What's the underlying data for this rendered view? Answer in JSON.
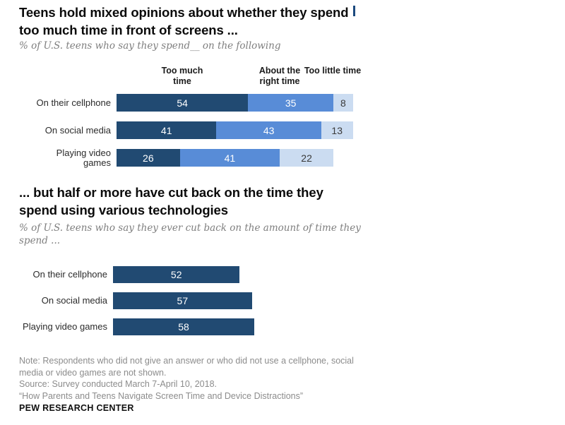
{
  "colors": {
    "dark_blue": "#214A72",
    "medium_blue": "#588CD7",
    "light_blue": "#CBDCF1",
    "subtitle_gray": "#7f7f7f",
    "note_gray": "#8c8c8c"
  },
  "section1": {
    "title_line1": "Teens hold mixed opinions about whether they spend",
    "title_line2": "too much time in front of screens ...",
    "subtitle": "% of U.S. teens who say they spend__ on the following"
  },
  "section2": {
    "title_line1": "... but half or more have cut back on the time they",
    "title_line2": "spend using various technologies",
    "subtitle_line1": "% of U.S. teens who say they ever cut back on the amount of time they",
    "subtitle_line2": "spend ..."
  },
  "footer": {
    "note_lines": [
      "Note: Respondents who did not give an answer or who did not use a cellphone, social",
      "media or video games are not shown.",
      "Source: Survey conducted March 7-April 10, 2018.",
      "“How Parents and Teens Navigate Screen Time and Device Distractions”"
    ],
    "brand": "PEW RESEARCH CENTER"
  },
  "chart_data": [
    {
      "type": "bar",
      "orientation": "horizontal",
      "stacked": true,
      "title": "Teens hold mixed opinions about whether they spend too much time in front of screens ...",
      "subtitle": "% of U.S. teens who say they spend__ on the following",
      "categories": [
        "On their cellphone",
        "On social media",
        "Playing video games"
      ],
      "series": [
        {
          "name": "Too much time",
          "values": [
            54,
            41,
            26
          ],
          "color": "#214A72",
          "value_label_color": "#ffffff"
        },
        {
          "name": "About the right time",
          "values": [
            35,
            43,
            41
          ],
          "color": "#588CD7",
          "value_label_color": "#ffffff"
        },
        {
          "name": "Too little time",
          "values": [
            8,
            13,
            22
          ],
          "color": "#CBDCF1",
          "value_label_color": "#3a3a3a"
        }
      ],
      "xlim": [
        0,
        100
      ],
      "axis": "none",
      "grid": false,
      "legend_position": "column-headers-above-bars"
    },
    {
      "type": "bar",
      "orientation": "horizontal",
      "stacked": false,
      "title": "... but half or more have cut back on the time they spend using various technologies",
      "subtitle": "% of U.S. teens who say they ever cut back on the amount of time they spend ...",
      "categories": [
        "On their cellphone",
        "On social media",
        "Playing video games"
      ],
      "values": [
        52,
        57,
        58
      ],
      "bar_color": "#214A72",
      "value_label_color": "#ffffff",
      "xlim": [
        0,
        100
      ],
      "axis": "none",
      "grid": false
    }
  ]
}
